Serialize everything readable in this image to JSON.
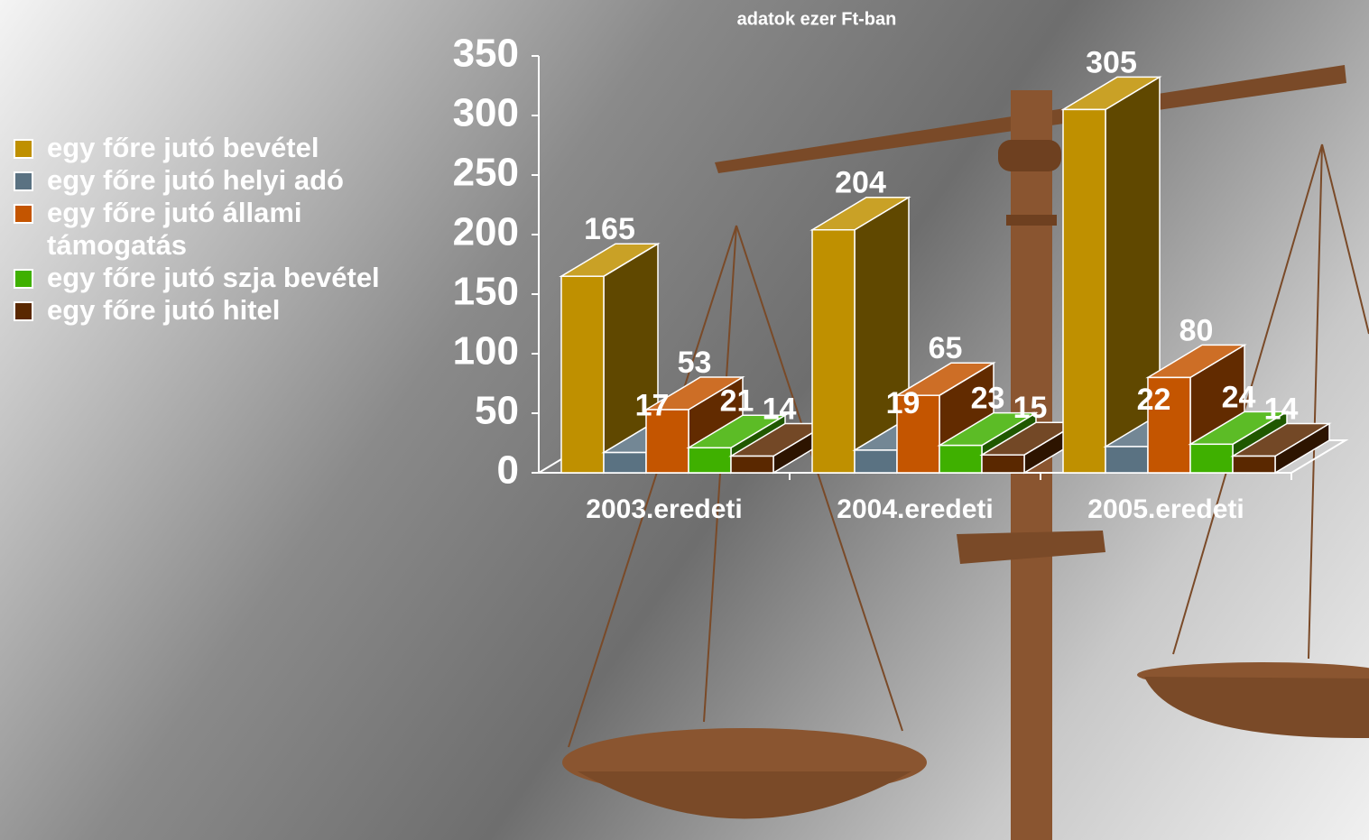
{
  "chart_data": {
    "type": "bar3d",
    "title": "adatok ezer Ft-ban",
    "categories": [
      "2003.eredeti",
      "2004.eredeti",
      "2005.eredeti"
    ],
    "series": [
      {
        "name": "egy főre jutó bevétel",
        "color": "#bf9000",
        "values": [
          165,
          204,
          305
        ]
      },
      {
        "name": "egy főre jutó helyi adó",
        "color": "#5a7282",
        "values": [
          17,
          19,
          22
        ]
      },
      {
        "name": "egy főre jutó állami támogatás",
        "color": "#c45500",
        "values": [
          53,
          65,
          80
        ]
      },
      {
        "name": "egy főre jutó szja bevétel",
        "color": "#3fb000",
        "values": [
          21,
          23,
          24
        ]
      },
      {
        "name": "egy főre jutó hitel",
        "color": "#5a2800",
        "values": [
          14,
          15,
          14
        ]
      }
    ],
    "ylim": [
      0,
      350
    ],
    "yticks": [
      0,
      50,
      100,
      150,
      200,
      250,
      300,
      350
    ],
    "legend": "left"
  }
}
